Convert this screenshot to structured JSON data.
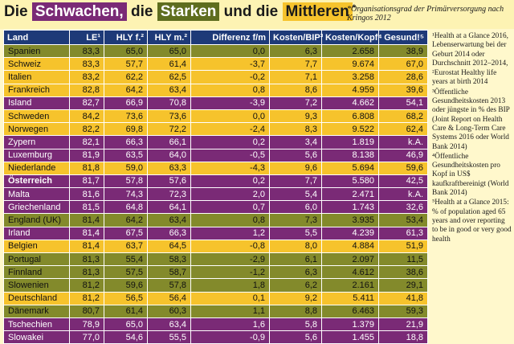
{
  "title": {
    "part1": "Die ",
    "weak": "Schwachen,",
    "part2": " die ",
    "strong": "Starken",
    "part3": " und die ",
    "middle": "Mittleren",
    "mark": "*"
  },
  "subnote": "*Organisationsgrad der Primärversorgung nach Kringos 2012",
  "columns": [
    "Land",
    "LE¹",
    "HLY f.²",
    "HLY m.²",
    "Differenz f/m",
    "Kosten/BIP³",
    "Kosten/Kopf⁴",
    "Gesund!⁵"
  ],
  "rows": [
    {
      "land": "Spanien",
      "group": "olive",
      "values": [
        "83,3",
        "65,0",
        "65,0",
        "0,0",
        "6,3",
        "2.658",
        "38,9"
      ]
    },
    {
      "land": "Schweiz",
      "group": "yellow",
      "values": [
        "83,3",
        "57,7",
        "61,4",
        "-3,7",
        "7,7",
        "9.674",
        "67,0"
      ]
    },
    {
      "land": "Italien",
      "group": "yellow",
      "values": [
        "83,2",
        "62,2",
        "62,5",
        "-0,2",
        "7,1",
        "3.258",
        "28,6"
      ]
    },
    {
      "land": "Frankreich",
      "group": "yellow",
      "values": [
        "82,8",
        "64,2",
        "63,4",
        "0,8",
        "8,6",
        "4.959",
        "39,6"
      ]
    },
    {
      "land": "Island",
      "group": "purple",
      "values": [
        "82,7",
        "66,9",
        "70,8",
        "-3,9",
        "7,2",
        "4.662",
        "54,1"
      ]
    },
    {
      "land": "Schweden",
      "group": "yellow",
      "values": [
        "84,2",
        "73,6",
        "73,6",
        "0,0",
        "9,3",
        "6.808",
        "68,2"
      ]
    },
    {
      "land": "Norwegen",
      "group": "yellow",
      "values": [
        "82,2",
        "69,8",
        "72,2",
        "-2,4",
        "8,3",
        "9.522",
        "62,4"
      ]
    },
    {
      "land": "Zypern",
      "group": "purple",
      "values": [
        "82,1",
        "66,3",
        "66,1",
        "0,2",
        "3,4",
        "1.819",
        "k.A."
      ]
    },
    {
      "land": "Luxemburg",
      "group": "purple",
      "values": [
        "81,9",
        "63,5",
        "64,0",
        "-0,5",
        "5,6",
        "8.138",
        "46,9"
      ]
    },
    {
      "land": "Niederlande",
      "group": "yellow",
      "values": [
        "81,8",
        "59,0",
        "63,3",
        "-4,3",
        "9,6",
        "5.694",
        "59,6"
      ]
    },
    {
      "land": "Österreich",
      "group": "purple",
      "bold": true,
      "values": [
        "81,7",
        "57,8",
        "57,6",
        "0,2",
        "7,7",
        "5.580",
        "42,5"
      ]
    },
    {
      "land": "Malta",
      "group": "purple",
      "values": [
        "81,6",
        "74,3",
        "72,3",
        "2,0",
        "5,4",
        "2.471",
        "k.A."
      ]
    },
    {
      "land": "Griechenland",
      "group": "purple",
      "values": [
        "81,5",
        "64,8",
        "64,1",
        "0,7",
        "6,0",
        "1.743",
        "32,6"
      ]
    },
    {
      "land": "England (UK)",
      "group": "olive",
      "values": [
        "81,4",
        "64,2",
        "63,4",
        "0,8",
        "7,3",
        "3.935",
        "53,4"
      ]
    },
    {
      "land": "Irland",
      "group": "purple",
      "values": [
        "81,4",
        "67,5",
        "66,3",
        "1,2",
        "5,5",
        "4.239",
        "61,3"
      ]
    },
    {
      "land": "Belgien",
      "group": "yellow",
      "values": [
        "81,4",
        "63,7",
        "64,5",
        "-0,8",
        "8,0",
        "4.884",
        "51,9"
      ]
    },
    {
      "land": "Portugal",
      "group": "olive",
      "values": [
        "81,3",
        "55,4",
        "58,3",
        "-2,9",
        "6,1",
        "2.097",
        "11,5"
      ]
    },
    {
      "land": "Finnland",
      "group": "olive",
      "values": [
        "81,3",
        "57,5",
        "58,7",
        "-1,2",
        "6,3",
        "4.612",
        "38,6"
      ]
    },
    {
      "land": "Slowenien",
      "group": "olive",
      "values": [
        "81,2",
        "59,6",
        "57,8",
        "1,8",
        "6,2",
        "2.161",
        "29,1"
      ]
    },
    {
      "land": "Deutschland",
      "group": "yellow",
      "values": [
        "81,2",
        "56,5",
        "56,4",
        "0,1",
        "9,2",
        "5.411",
        "41,8"
      ]
    },
    {
      "land": "Dänemark",
      "group": "olive",
      "values": [
        "80,7",
        "61,4",
        "60,3",
        "1,1",
        "8,8",
        "6.463",
        "59,3"
      ]
    },
    {
      "land": "Tschechien",
      "group": "purple",
      "values": [
        "78,9",
        "65,0",
        "63,4",
        "1,6",
        "5,8",
        "1.379",
        "21,9"
      ]
    },
    {
      "land": "Slowakei",
      "group": "purple",
      "values": [
        "77,0",
        "54,6",
        "55,5",
        "-0,9",
        "5,6",
        "1.455",
        "18,8"
      ]
    }
  ],
  "sources": [
    "¹Health at a Glance 2016, Lebenserwartung bei der Geburt 2014 oder Durchschnitt 2012–2014,",
    "²Eurostat Healthy life years at birth 2014",
    "³Öffentliche Gesundheitskosten 2013 oder jüngste in % des BIP (Joint Report on Health Care & Long-Term Care Systems 2016 oder World Bank 2014)",
    "⁴Öffentliche Gesundheitskosten pro Kopf in US$ kaufkraftbereinigt (World Bank 2014)",
    "⁵Health at a Glance 2015: % of population aged 65 years and over reporting to be in good or very good health"
  ]
}
